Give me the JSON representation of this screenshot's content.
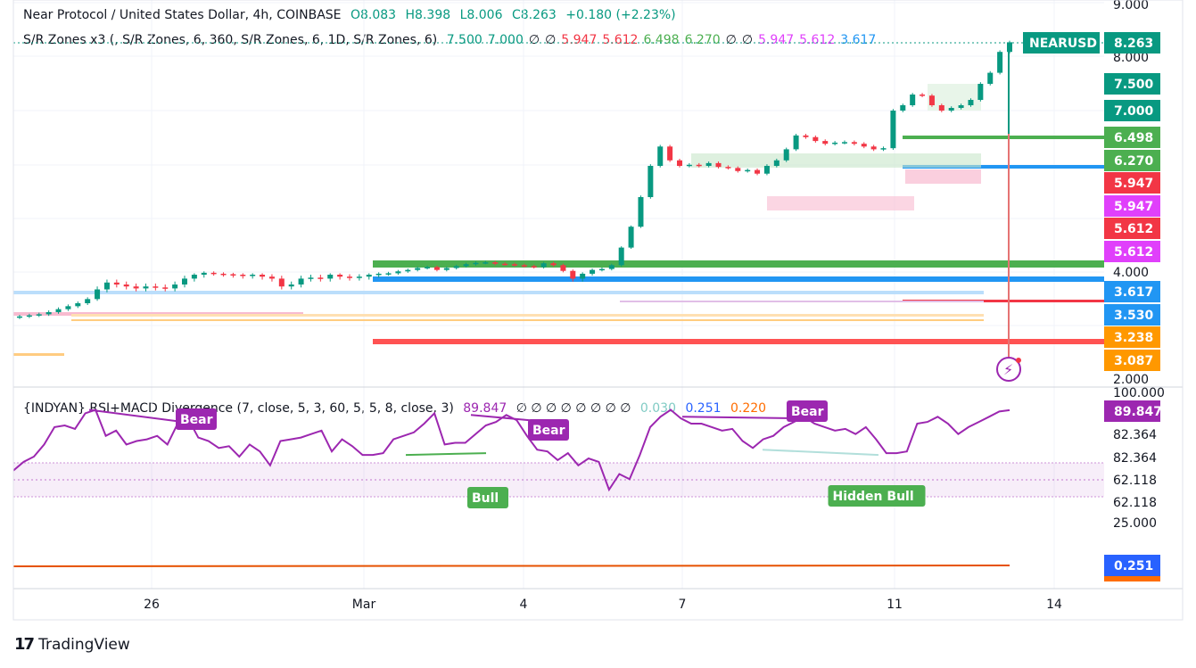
{
  "header": {
    "symbol": "Near Protocol / United States Dollar, 4h, COINBASE",
    "open": "O8.083",
    "high": "H8.398",
    "low": "L8.006",
    "close": "C8.263",
    "change": "+0.180 (+2.23%)",
    "sr_label": "S/R Zones x3 (, S/R Zones, 6, 360, S/R Zones, 6, 1D, S/R Zones, 6)",
    "sr_values": [
      {
        "text": "7.500",
        "color": "#089981"
      },
      {
        "text": "7.000",
        "color": "#089981"
      },
      {
        "text": "∅",
        "color": "#131722"
      },
      {
        "text": "∅",
        "color": "#131722"
      },
      {
        "text": "5.947",
        "color": "#f23645"
      },
      {
        "text": "5.612",
        "color": "#f23645"
      },
      {
        "text": "6.498",
        "color": "#4caf50"
      },
      {
        "text": "6.270",
        "color": "#4caf50"
      },
      {
        "text": "∅",
        "color": "#131722"
      },
      {
        "text": "∅",
        "color": "#131722"
      },
      {
        "text": "5.947",
        "color": "#e040fb"
      },
      {
        "text": "5.612",
        "color": "#e040fb"
      },
      {
        "text": "3.617",
        "color": "#2196f3"
      }
    ]
  },
  "indicator_header": {
    "label": "{INDYAN} RSI+MACD Divergence (7, close, 5, 3, 60, 5, 5, 8, close, 3)",
    "value": "89.847",
    "nulls": "∅ ∅ ∅ ∅ ∅ ∅ ∅ ∅",
    "v2": "0.030",
    "v3": "0.251",
    "v4": "0.220"
  },
  "brand": "TradingView",
  "colors": {
    "up": "#089981",
    "down": "#f23645",
    "rsi": "#9c27b0",
    "bull": "#4caf50",
    "bear": "#9c27b0"
  },
  "chart_data": [
    {
      "type": "candlestick",
      "title": "Near Protocol / United States Dollar, 4h, COINBASE",
      "y_ticks": [
        "9.000",
        "8.000",
        "4.000",
        "2.000"
      ],
      "x_ticks": [
        "26",
        "Mar",
        "4",
        "7",
        "11",
        "14"
      ],
      "last_price": {
        "symbol": "NEARUSD",
        "value": "8.263"
      },
      "price_labels": [
        {
          "text": "7.500",
          "color": "#089981"
        },
        {
          "text": "7.000",
          "color": "#089981"
        },
        {
          "text": "6.498",
          "color": "#4caf50"
        },
        {
          "text": "6.270",
          "color": "#4caf50"
        },
        {
          "text": "5.947",
          "color": "#f23645"
        },
        {
          "text": "5.947",
          "color": "#e040fb"
        },
        {
          "text": "5.612",
          "color": "#f23645"
        },
        {
          "text": "5.612",
          "color": "#e040fb"
        },
        {
          "text": "3.617",
          "color": "#2196f3"
        },
        {
          "text": "3.530",
          "color": "#2196f3"
        },
        {
          "text": "3.238",
          "color": "#ff9800"
        },
        {
          "text": "3.087",
          "color": "#ff9800"
        }
      ],
      "close_series": [
        3.12,
        3.14,
        3.16,
        3.2,
        3.25,
        3.3,
        3.35,
        3.42,
        3.55,
        3.62,
        3.6,
        3.58,
        3.56,
        3.58,
        3.57,
        3.56,
        3.6,
        3.66,
        3.7,
        3.74,
        3.72,
        3.71,
        3.7,
        3.69,
        3.7,
        3.68,
        3.66,
        3.58,
        3.6,
        3.66,
        3.67,
        3.66,
        3.7,
        3.68,
        3.67,
        3.68,
        3.7,
        3.72,
        3.73,
        3.77,
        3.8,
        3.84,
        3.86,
        3.8,
        3.84,
        3.88,
        3.92,
        3.95,
        3.96,
        3.93,
        3.92,
        3.9,
        3.88,
        3.86,
        3.94,
        3.9,
        3.78,
        3.66,
        3.72,
        3.8,
        3.82,
        3.9,
        4.3,
        4.8,
        5.4,
        6.0,
        6.35,
        6.1,
        6.0,
        6.02,
        6.0,
        6.05,
        5.98,
        5.96,
        5.9,
        5.92,
        5.85,
        6.0,
        6.1,
        6.3,
        6.55,
        6.52,
        6.45,
        6.4,
        6.42,
        6.43,
        6.4,
        6.35,
        6.3,
        6.32,
        7.0,
        7.1,
        7.3,
        7.28,
        7.1,
        7.0,
        7.05,
        7.1,
        7.2,
        7.5,
        7.7,
        8.08,
        8.26
      ]
    },
    {
      "type": "line",
      "title": "{INDYAN} RSI+MACD Divergence",
      "y_ticks": [
        "100.000",
        "82.364",
        "82.364",
        "62.118",
        "62.118",
        "25.000"
      ],
      "band": [
        62.118,
        82.364
      ],
      "rsi_series": [
        55,
        60,
        63,
        70,
        80,
        81,
        79,
        88,
        90,
        75,
        78,
        70,
        72,
        73,
        75,
        70,
        82,
        85,
        74,
        72,
        68,
        69,
        63,
        70,
        66,
        58,
        72,
        73,
        74,
        76,
        78,
        66,
        73,
        69,
        64,
        64,
        65,
        73,
        75,
        77,
        82,
        88,
        70,
        71,
        71,
        76,
        81,
        83,
        87,
        84,
        75,
        67,
        66,
        61,
        65,
        58,
        62,
        60,
        44,
        53,
        50,
        64,
        80,
        86,
        90,
        85,
        82,
        82,
        80,
        78,
        79,
        72,
        68,
        73,
        75,
        80,
        83,
        86,
        82,
        80,
        78,
        79,
        76,
        80,
        73,
        65,
        65,
        66,
        82,
        83,
        86,
        82,
        76,
        80,
        83,
        86,
        89,
        89.8
      ],
      "annotations": [
        {
          "text": "Bear",
          "kind": "bear"
        },
        {
          "text": "Bull",
          "kind": "bull"
        },
        {
          "text": "Bear",
          "kind": "bear"
        },
        {
          "text": "Bear",
          "kind": "bear"
        },
        {
          "text": "Hidden Bull",
          "kind": "bull"
        }
      ],
      "last_value": "89.847",
      "macd_value": "0.251"
    }
  ]
}
